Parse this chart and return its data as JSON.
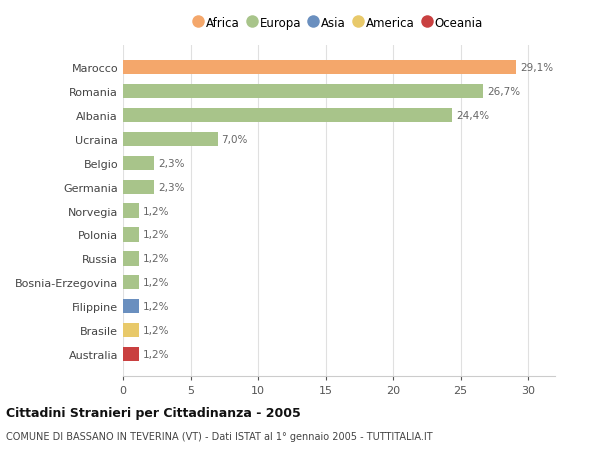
{
  "countries": [
    "Marocco",
    "Romania",
    "Albania",
    "Ucraina",
    "Belgio",
    "Germania",
    "Norvegia",
    "Polonia",
    "Russia",
    "Bosnia-Erzegovina",
    "Filippine",
    "Brasile",
    "Australia"
  ],
  "values": [
    29.1,
    26.7,
    24.4,
    7.0,
    2.3,
    2.3,
    1.2,
    1.2,
    1.2,
    1.2,
    1.2,
    1.2,
    1.2
  ],
  "labels": [
    "29,1%",
    "26,7%",
    "24,4%",
    "7,0%",
    "2,3%",
    "2,3%",
    "1,2%",
    "1,2%",
    "1,2%",
    "1,2%",
    "1,2%",
    "1,2%",
    "1,2%"
  ],
  "colors": [
    "#F4A76B",
    "#A8C48A",
    "#A8C48A",
    "#A8C48A",
    "#A8C48A",
    "#A8C48A",
    "#A8C48A",
    "#A8C48A",
    "#A8C48A",
    "#A8C48A",
    "#6A8FBF",
    "#E8C96A",
    "#C94040"
  ],
  "legend_labels": [
    "Africa",
    "Europa",
    "Asia",
    "America",
    "Oceania"
  ],
  "legend_colors": [
    "#F4A76B",
    "#A8C48A",
    "#6A8FBF",
    "#E8C96A",
    "#C94040"
  ],
  "title": "Cittadini Stranieri per Cittadinanza - 2005",
  "subtitle": "COMUNE DI BASSANO IN TEVERINA (VT) - Dati ISTAT al 1° gennaio 2005 - TUTTITALIA.IT",
  "xlim": [
    0,
    32
  ],
  "xticks": [
    0,
    5,
    10,
    15,
    20,
    25,
    30
  ],
  "background_color": "#ffffff",
  "bar_height": 0.6,
  "label_color": "#666666",
  "grid_color": "#e0e0e0",
  "ytick_color": "#444444"
}
